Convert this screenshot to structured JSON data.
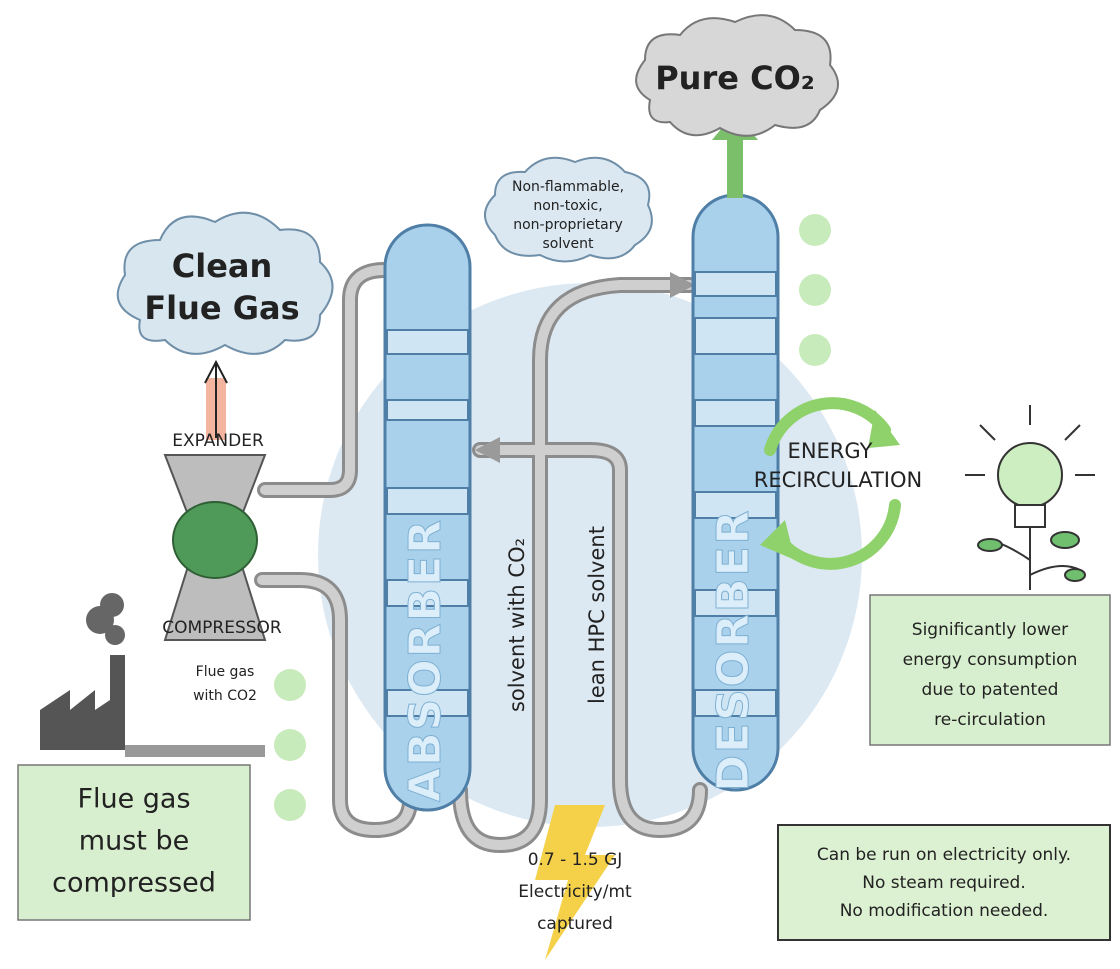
{
  "clouds": {
    "pure_co2": "Pure CO₂",
    "solvent_note": [
      "Non-flammable,",
      "non-toxic,",
      "non-proprietary",
      "solvent"
    ],
    "clean_flue_gas": [
      "Clean",
      "Flue Gas"
    ]
  },
  "labels": {
    "expander": "EXPANDER",
    "compressor": "COMPRESSOR",
    "flue_gas_in": [
      "Flue gas",
      "with CO2"
    ],
    "absorber": "ABSORBER",
    "desorber": "DESORBER",
    "solvent_with_co2": "solvent with CO₂",
    "lean_solvent": "lean HPC solvent",
    "energy_recirculation": [
      "ENERGY",
      "RECIRCULATION"
    ],
    "electricity": [
      "0.7 - 1.5 GJ",
      "Electricity/mt",
      "captured"
    ]
  },
  "notes": {
    "energy": [
      "Significantly lower",
      "energy consumption",
      "due to patented",
      "re-circulation"
    ],
    "compression": [
      "Flue gas",
      "must be",
      "compressed"
    ],
    "electricity_only": [
      "Can be run on electricity only.",
      "No steam required.",
      "No modification needed."
    ]
  }
}
